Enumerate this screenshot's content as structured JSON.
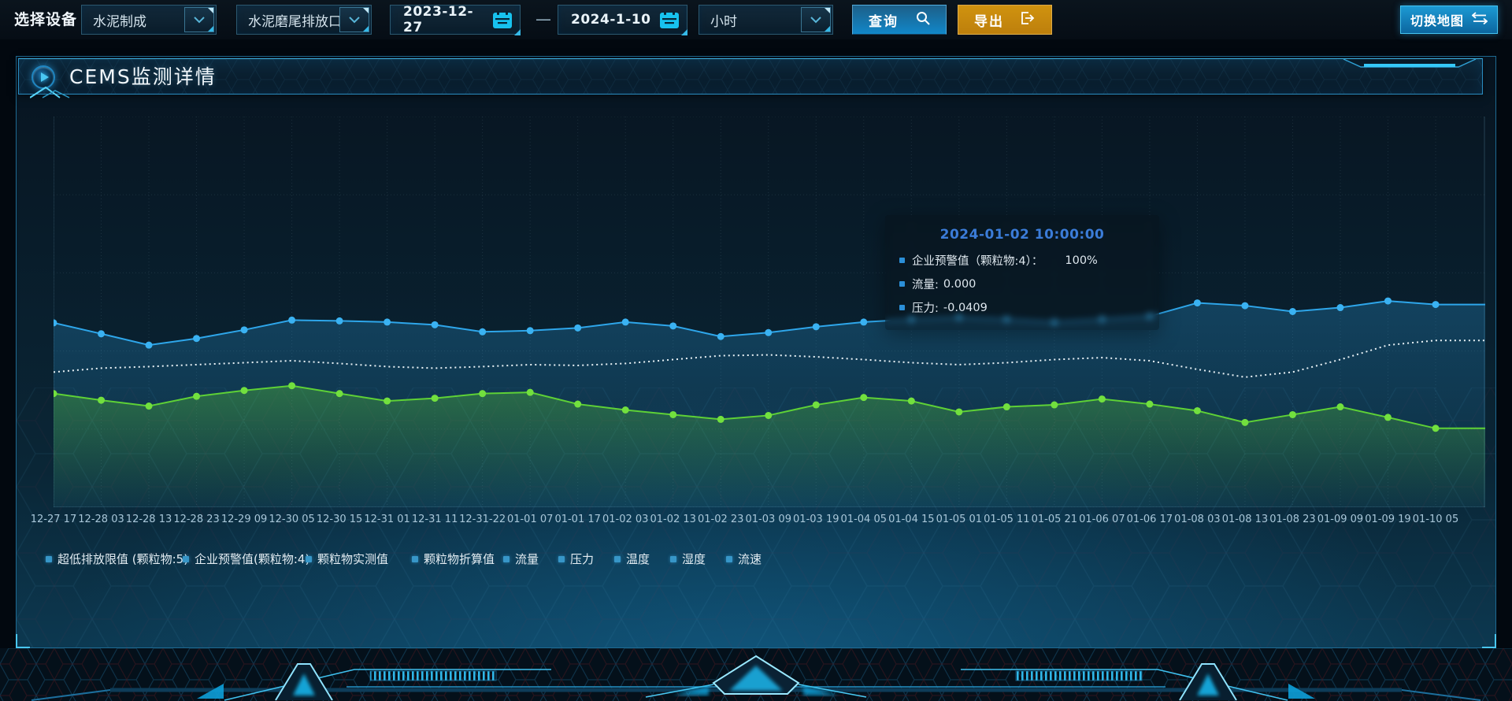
{
  "toolbar": {
    "device_label": "选择设备",
    "device_select": {
      "value": "水泥制成"
    },
    "outlet_select": {
      "value": "水泥磨尾排放口"
    },
    "date_start": "2023-12-27",
    "date_separator": "—",
    "date_end": "2024-1-10",
    "interval_select": {
      "value": "小时"
    },
    "query_button": "查询",
    "export_button": "导出",
    "switch_map_button": "切换地图"
  },
  "panel": {
    "title": "CEMS监测详情"
  },
  "tooltip": {
    "title": "2024-01-02 10:00:00",
    "rows": [
      {
        "label": "企业预警值（颗粒物:4）：",
        "value": "100%"
      },
      {
        "label": "流量:",
        "value": "0.000"
      },
      {
        "label": "压力:",
        "value": "-0.0409"
      }
    ]
  },
  "chart_data": {
    "type": "line",
    "title": "",
    "xlabel": "",
    "ylabel": "",
    "ylim": [
      0,
      100
    ],
    "grid": true,
    "y_axis_labels_visible": false,
    "legend_position": "bottom-left",
    "categories": [
      "12-27 17",
      "12-28 03",
      "12-28 13",
      "12-28 23",
      "12-29 09",
      "12-30 05",
      "12-30 15",
      "12-31 01",
      "12-31 11",
      "12-31-22",
      "01-01 07",
      "01-01 17",
      "01-02 03",
      "01-02 13",
      "01-02 23",
      "01-03 09",
      "01-03 19",
      "01-04 05",
      "01-04 15",
      "01-05 01",
      "01-05 11",
      "01-05 21",
      "01-06 07",
      "01-06 17",
      "01-08 03",
      "01-08 13",
      "01-08 23",
      "01-09 09",
      "01-09 19",
      "01-10 05"
    ],
    "series": [
      {
        "name": "企业预警值(颗粒物:4)",
        "color": "#2ea6ea",
        "dot_color": "#3ab2f2",
        "symbol": true,
        "dashed": false,
        "area": true,
        "values": [
          47.2,
          44.4,
          41.5,
          43.2,
          45.4,
          47.9,
          47.7,
          47.4,
          46.7,
          44.9,
          45.2,
          45.9,
          47.4,
          46.4,
          43.7,
          44.7,
          46.2,
          47.4,
          48.1,
          48.6,
          48.1,
          47.4,
          48.1,
          48.9,
          52.3,
          51.6,
          50.1,
          51.1,
          52.8,
          51.9
        ]
      },
      {
        "name": "压力",
        "color": "#e9f2f6",
        "dot_color": "#e9f2f6",
        "symbol": false,
        "dashed": true,
        "area": false,
        "values": [
          34.6,
          35.6,
          36.0,
          36.5,
          37.0,
          37.5,
          36.8,
          36.0,
          35.6,
          36.0,
          36.5,
          36.3,
          36.8,
          37.8,
          38.8,
          39.0,
          38.5,
          37.8,
          37.0,
          36.5,
          37.0,
          37.8,
          38.3,
          37.5,
          35.3,
          33.3,
          34.6,
          37.8,
          41.5,
          42.7
        ]
      },
      {
        "name": "流量",
        "color": "#5ed136",
        "dot_color": "#72e03e",
        "symbol": true,
        "dashed": false,
        "area": true,
        "values": [
          29.1,
          27.4,
          25.9,
          28.4,
          29.9,
          31.1,
          29.1,
          27.2,
          27.9,
          29.1,
          29.4,
          26.4,
          24.9,
          23.7,
          22.5,
          23.5,
          26.2,
          28.1,
          27.2,
          24.4,
          25.7,
          26.2,
          27.7,
          26.4,
          24.7,
          21.7,
          23.7,
          25.7,
          23.0,
          20.2
        ]
      }
    ],
    "legend": [
      "超低排放限值 (颗粒物:5)",
      "企业预警值(颗粒物:4)",
      "颗粒物实测值",
      "颗粒物折算值",
      "流量",
      "压力",
      "温度",
      "湿度",
      "流速"
    ]
  },
  "colors": {
    "accent_cyan": "#35c3f0",
    "query_button_blue": "#1187c9",
    "export_button_orange": "#c98a0e",
    "map_button_blue": "#1490cc",
    "tooltip_title_blue": "#3b7cd8",
    "series_blue": "#2ea6ea",
    "series_green": "#5ed136",
    "series_white_dashed": "#e9f2f6"
  }
}
